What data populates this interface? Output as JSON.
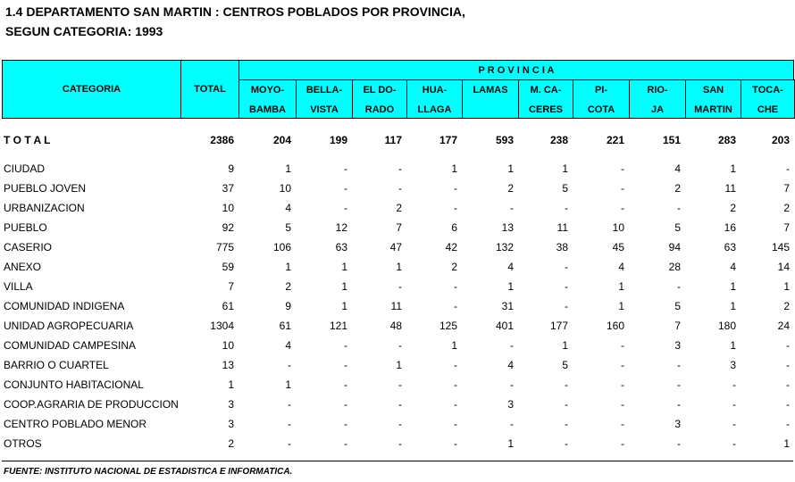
{
  "header": {
    "title_lines": [
      "1.4  DEPARTAMENTO SAN MARTIN : CENTROS POBLADOS POR PROVINCIA,",
      "SEGUN CATEGORIA: 1993"
    ]
  },
  "table": {
    "columns": {
      "category": "CATEGORIA",
      "total": "TOTAL",
      "group": "P R O V I N C I A",
      "provinces": [
        [
          "MOYO-",
          "BAMBA"
        ],
        [
          "BELLA-",
          "VISTA"
        ],
        [
          "EL DO-",
          "RADO"
        ],
        [
          "HUA-",
          "LLAGA"
        ],
        [
          "LAMAS"
        ],
        [
          "M. CA-",
          "CERES"
        ],
        [
          "PI-",
          "COTA"
        ],
        [
          "RIO-",
          "JA"
        ],
        [
          "SAN",
          "MARTIN"
        ],
        [
          "TOCA-",
          "CHE"
        ]
      ]
    },
    "total_row": {
      "label": "T O T A L",
      "values": [
        2386,
        204,
        199,
        117,
        177,
        593,
        238,
        221,
        151,
        283,
        203
      ]
    },
    "rows": [
      {
        "label": "CIUDAD",
        "values": [
          9,
          1,
          "-",
          "-",
          1,
          1,
          1,
          "-",
          4,
          1,
          "-"
        ]
      },
      {
        "label": "PUEBLO JOVEN",
        "values": [
          37,
          10,
          "-",
          "-",
          "-",
          2,
          5,
          "-",
          2,
          11,
          7
        ]
      },
      {
        "label": "URBANIZACION",
        "values": [
          10,
          4,
          "-",
          2,
          "-",
          "-",
          "-",
          "-",
          "-",
          2,
          2
        ]
      },
      {
        "label": "PUEBLO",
        "values": [
          92,
          5,
          12,
          7,
          6,
          13,
          11,
          10,
          5,
          16,
          7
        ]
      },
      {
        "label": "CASERIO",
        "values": [
          775,
          106,
          63,
          47,
          42,
          132,
          38,
          45,
          94,
          63,
          145
        ]
      },
      {
        "label": "ANEXO",
        "values": [
          59,
          1,
          1,
          1,
          2,
          4,
          "-",
          4,
          28,
          4,
          14
        ]
      },
      {
        "label": "VILLA",
        "values": [
          7,
          2,
          1,
          "-",
          "-",
          1,
          "-",
          1,
          "-",
          1,
          1
        ]
      },
      {
        "label": "COMUNIDAD INDIGENA",
        "values": [
          61,
          9,
          1,
          11,
          "-",
          31,
          "-",
          1,
          5,
          1,
          2
        ]
      },
      {
        "label": "UNIDAD AGROPECUARIA",
        "values": [
          1304,
          61,
          121,
          48,
          125,
          401,
          177,
          160,
          7,
          180,
          24
        ]
      },
      {
        "label": "COMUNIDAD CAMPESINA",
        "values": [
          10,
          4,
          "-",
          "-",
          1,
          "-",
          1,
          "-",
          3,
          1,
          "-"
        ]
      },
      {
        "label": "BARRIO O CUARTEL",
        "values": [
          13,
          "-",
          "-",
          1,
          "-",
          4,
          5,
          "-",
          "-",
          3,
          "-"
        ]
      },
      {
        "label": "CONJUNTO HABITACIONAL",
        "values": [
          1,
          1,
          "-",
          "-",
          "-",
          "-",
          "-",
          "-",
          "-",
          "-",
          "-"
        ]
      },
      {
        "label": "COOP.AGRARIA DE PRODUCCION",
        "values": [
          3,
          "-",
          "-",
          "-",
          "-",
          3,
          "-",
          "-",
          "-",
          "-",
          "-"
        ]
      },
      {
        "label": "CENTRO POBLADO MENOR",
        "values": [
          3,
          "-",
          "-",
          "-",
          "-",
          "-",
          "-",
          "-",
          3,
          "-",
          "-"
        ]
      },
      {
        "label": "OTROS",
        "values": [
          2,
          "-",
          "-",
          "-",
          "-",
          1,
          "-",
          "-",
          "-",
          "-",
          1
        ]
      }
    ]
  },
  "footer": {
    "source": "FUENTE: INSTITUTO NACIONAL DE ESTADISTICA E INFORMATICA."
  }
}
